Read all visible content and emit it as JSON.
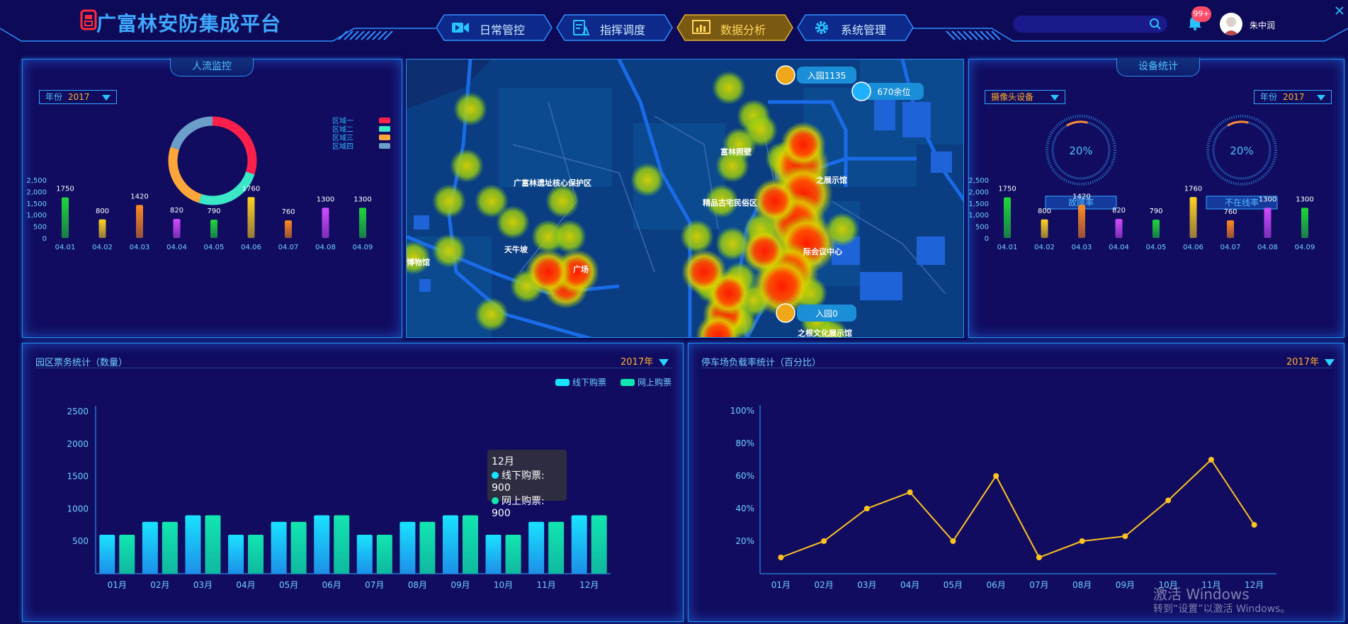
{
  "header": {
    "title": "广富林安防集成平台",
    "nav": [
      {
        "label": "日常管控",
        "icon": "video-camera-icon"
      },
      {
        "label": "指挥调度",
        "icon": "clipboard-icon"
      },
      {
        "label": "数据分析",
        "icon": "bar-chart-icon",
        "active": true
      },
      {
        "label": "系统管理",
        "icon": "gear-icon"
      }
    ],
    "search_placeholder": "",
    "notification_badge": "99+",
    "username": "朱中润"
  },
  "people_flow": {
    "title": "人流监控",
    "year_label": "年份",
    "year_value": "2017",
    "legend": [
      {
        "name": "区域一",
        "color": "#ff1f4b"
      },
      {
        "name": "区域二",
        "color": "#3ae8c8"
      },
      {
        "name": "区域三",
        "color": "#ffa63a"
      },
      {
        "name": "区域四",
        "color": "#6b9ec8"
      }
    ],
    "donut": [
      {
        "value": 30,
        "color": "#ff1f4b"
      },
      {
        "value": 25,
        "color": "#3ae8c8"
      },
      {
        "value": 25,
        "color": "#ffa63a"
      },
      {
        "value": 20,
        "color": "#6b9ec8"
      }
    ]
  },
  "device_stats": {
    "title": "设备统计",
    "device_select": "摄像头设备",
    "year_label": "年份",
    "year_value": "2017",
    "gauges": [
      {
        "value_text": "20%",
        "value": 0.2,
        "label": "故障率"
      },
      {
        "value_text": "20%",
        "value": 0.2,
        "label": "不在线率"
      }
    ]
  },
  "map": {
    "labels": [
      {
        "text": "广富林遗址核心保护区"
      },
      {
        "text": "天牛坡"
      },
      {
        "text": "富林照壁"
      },
      {
        "text": "精品古宅民俗区"
      },
      {
        "text": "之展示馆"
      },
      {
        "text": "际会议中心"
      },
      {
        "text": "博物馆"
      },
      {
        "text": "广场"
      },
      {
        "text": "之根文化展示馆"
      }
    ],
    "badges": [
      {
        "text": "入园1135",
        "icon": "entrance-icon"
      },
      {
        "text": "670余位",
        "icon": "parking-icon"
      },
      {
        "text": "入园0",
        "icon": "entrance-icon"
      }
    ]
  },
  "ticket_stats": {
    "title": "园区票务统计（数量）",
    "year": "2017年",
    "tooltip": {
      "title": "12月",
      "rows": [
        "线下购票: 900",
        "网上购票: 900"
      ]
    }
  },
  "parking_stats": {
    "title": "停车场负载率统计（百分比）",
    "year": "2017年"
  },
  "watermark": {
    "line1": "激活 Windows",
    "line2": "转到“设置”以激活 Windows。"
  },
  "chart_data": [
    {
      "type": "bar",
      "id": "people-flow-bars",
      "categories": [
        "04.01",
        "04.02",
        "04.03",
        "04.04",
        "04.05",
        "04.06",
        "04.07",
        "04.08",
        "04.09"
      ],
      "values": [
        1750,
        800,
        1420,
        820,
        790,
        1760,
        760,
        1300,
        1300
      ],
      "colors": [
        "#1fd63a",
        "#ffd21f",
        "#ff8a1f",
        "#d04bff",
        "#1fd63a",
        "#ffd21f",
        "#ff8a1f",
        "#d04bff",
        "#1fd63a"
      ],
      "yticks": [
        "0",
        "500",
        "1,000",
        "1,500",
        "2,000",
        "2,500"
      ],
      "ylim": [
        0,
        2500
      ]
    },
    {
      "type": "bar",
      "id": "device-bars",
      "categories": [
        "04.01",
        "04.02",
        "04.03",
        "04.04",
        "04.05",
        "04.06",
        "04.07",
        "04.08",
        "04.09"
      ],
      "values": [
        1750,
        800,
        1420,
        820,
        790,
        1760,
        760,
        1300,
        1300
      ],
      "colors": [
        "#1fd63a",
        "#ffd21f",
        "#ff8a1f",
        "#d04bff",
        "#1fd63a",
        "#ffd21f",
        "#ff8a1f",
        "#d04bff",
        "#1fd63a"
      ],
      "yticks": [
        "0",
        "500",
        "1,000",
        "1,500",
        "2,000",
        "2,500"
      ],
      "ylim": [
        0,
        2500
      ]
    },
    {
      "type": "bar",
      "id": "ticket-bars",
      "categories": [
        "01月",
        "02月",
        "03月",
        "04月",
        "05月",
        "06月",
        "07月",
        "08月",
        "09月",
        "10月",
        "11月",
        "12月"
      ],
      "series": [
        {
          "name": "线下购票",
          "color": "#19e3ff",
          "values": [
            600,
            800,
            900,
            600,
            800,
            900,
            600,
            800,
            900,
            600,
            800,
            900
          ]
        },
        {
          "name": "网上购票",
          "color": "#12e6b0",
          "values": [
            600,
            800,
            900,
            600,
            800,
            900,
            600,
            800,
            900,
            600,
            800,
            900
          ]
        }
      ],
      "yticks": [
        "500",
        "1000",
        "1500",
        "2000",
        "2500"
      ],
      "ylim": [
        0,
        2500
      ]
    },
    {
      "type": "line",
      "id": "parking-line",
      "categories": [
        "01月",
        "02月",
        "03月",
        "04月",
        "05月",
        "06月",
        "07月",
        "08月",
        "09月",
        "10月",
        "11月",
        "12月"
      ],
      "values": [
        10,
        20,
        40,
        50,
        20,
        60,
        10,
        20,
        23,
        45,
        70,
        30
      ],
      "yticks": [
        "20%",
        "40%",
        "60%",
        "80%",
        "100%"
      ],
      "ylim": [
        0,
        100
      ],
      "color": "#ffc31f"
    }
  ]
}
